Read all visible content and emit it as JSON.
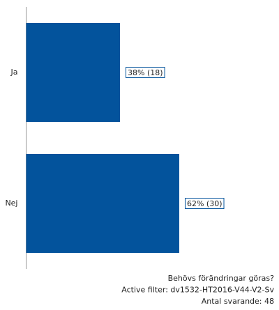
{
  "chart_data": {
    "type": "bar",
    "orientation": "horizontal",
    "categories": [
      "Ja",
      "Nej"
    ],
    "values": [
      38,
      62
    ],
    "value_labels": [
      "38% (18)",
      "62% (30)"
    ],
    "color": "#03539c",
    "footer": [
      "Behövs förändringar göras?",
      "Active filter: dv1532-HT2016-V44-V2-Sv",
      "Antal svarande: 48"
    ]
  }
}
